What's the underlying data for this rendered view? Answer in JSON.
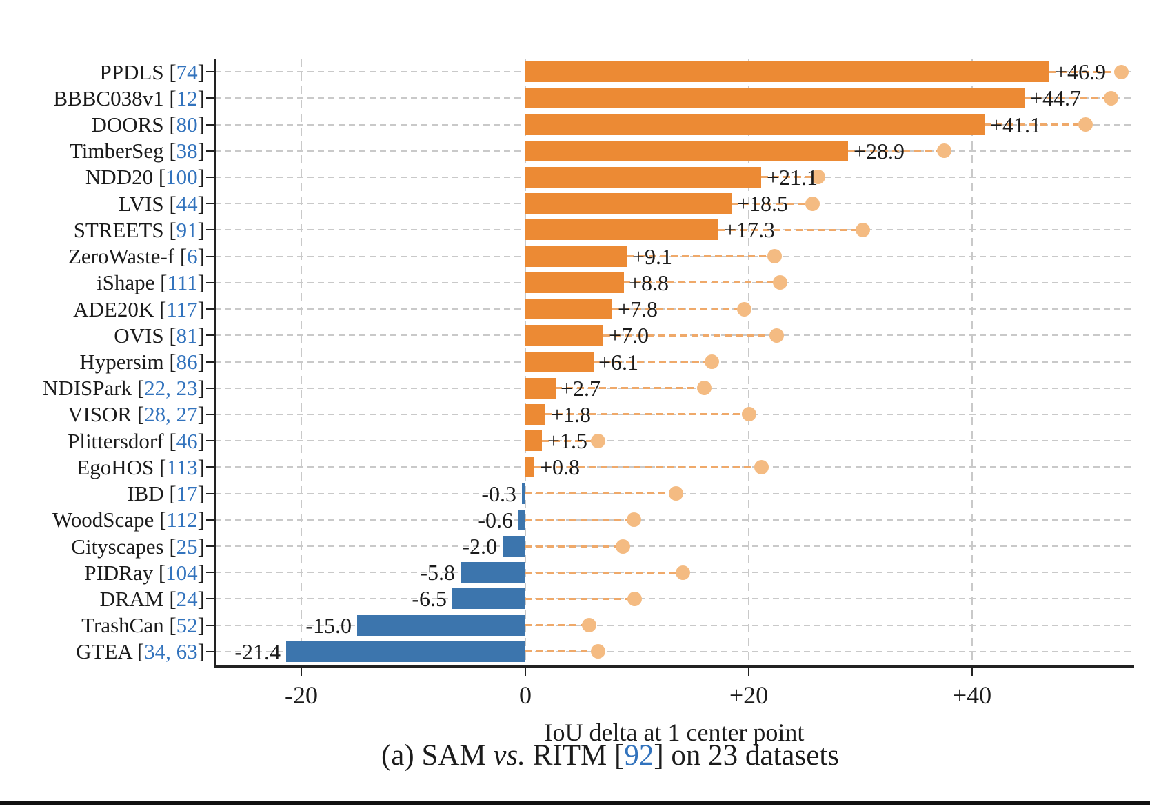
{
  "chart_data": {
    "type": "bar",
    "orientation": "horizontal",
    "xlabel": "IoU delta at 1 center point",
    "xlim": [
      -27.8,
      54.5
    ],
    "grid": true,
    "bar_color_positive": "#ec8a34",
    "bar_color_negative": "#3c75ad",
    "dot_color": "#f4bb82",
    "connector_color": "#efa96a",
    "axis_color": "#222222",
    "citation_color": "#3273bd",
    "xticks": [
      {
        "value": -20,
        "label": "-20"
      },
      {
        "value": 0,
        "label": "0"
      },
      {
        "value": 20,
        "label": "+20"
      },
      {
        "value": 40,
        "label": "+40"
      }
    ],
    "label_open": " [",
    "label_close": "]",
    "rows": [
      {
        "dataset": "PPDLS",
        "citation": "74",
        "delta": 46.9,
        "delta_label": "+46.9",
        "oracle_dot": 53.3
      },
      {
        "dataset": "BBBC038v1",
        "citation": "12",
        "delta": 44.7,
        "delta_label": "+44.7",
        "oracle_dot": 52.4
      },
      {
        "dataset": "DOORS",
        "citation": "80",
        "delta": 41.1,
        "delta_label": "+41.1",
        "oracle_dot": 50.1
      },
      {
        "dataset": "TimberSeg",
        "citation": "38",
        "delta": 28.9,
        "delta_label": "+28.9",
        "oracle_dot": 37.5
      },
      {
        "dataset": "NDD20",
        "citation": "100",
        "delta": 21.1,
        "delta_label": "+21.1",
        "oracle_dot": 26.2
      },
      {
        "dataset": "LVIS",
        "citation": "44",
        "delta": 18.5,
        "delta_label": "+18.5",
        "oracle_dot": 25.7
      },
      {
        "dataset": "STREETS",
        "citation": "91",
        "delta": 17.3,
        "delta_label": "+17.3",
        "oracle_dot": 30.2
      },
      {
        "dataset": "ZeroWaste-f",
        "citation": "6",
        "delta": 9.1,
        "delta_label": "+9.1",
        "oracle_dot": 22.3
      },
      {
        "dataset": "iShape",
        "citation": "111",
        "delta": 8.8,
        "delta_label": "+8.8",
        "oracle_dot": 22.8
      },
      {
        "dataset": "ADE20K",
        "citation": "117",
        "delta": 7.8,
        "delta_label": "+7.8",
        "oracle_dot": 19.6
      },
      {
        "dataset": "OVIS",
        "citation": "81",
        "delta": 7.0,
        "delta_label": "+7.0",
        "oracle_dot": 22.5
      },
      {
        "dataset": "Hypersim",
        "citation": "86",
        "delta": 6.1,
        "delta_label": "+6.1",
        "oracle_dot": 16.7
      },
      {
        "dataset": "NDISPark",
        "citation": "22, 23",
        "delta": 2.7,
        "delta_label": "+2.7",
        "oracle_dot": 16.0
      },
      {
        "dataset": "VISOR",
        "citation": "28, 27",
        "delta": 1.8,
        "delta_label": "+1.8",
        "oracle_dot": 20.0
      },
      {
        "dataset": "Plittersdorf",
        "citation": "46",
        "delta": 1.5,
        "delta_label": "+1.5",
        "oracle_dot": 6.5
      },
      {
        "dataset": "EgoHOS",
        "citation": "113",
        "delta": 0.8,
        "delta_label": "+0.8",
        "oracle_dot": 21.1
      },
      {
        "dataset": "IBD",
        "citation": "17",
        "delta": -0.3,
        "delta_label": "-0.3",
        "oracle_dot": 13.5
      },
      {
        "dataset": "WoodScape",
        "citation": "112",
        "delta": -0.6,
        "delta_label": "-0.6",
        "oracle_dot": 9.7
      },
      {
        "dataset": "Cityscapes",
        "citation": "25",
        "delta": -2.0,
        "delta_label": "-2.0",
        "oracle_dot": 8.7
      },
      {
        "dataset": "PIDRay",
        "citation": "104",
        "delta": -5.8,
        "delta_label": "-5.8",
        "oracle_dot": 14.1
      },
      {
        "dataset": "DRAM",
        "citation": "24",
        "delta": -6.5,
        "delta_label": "-6.5",
        "oracle_dot": 9.8
      },
      {
        "dataset": "TrashCan",
        "citation": "52",
        "delta": -15.0,
        "delta_label": "-15.0",
        "oracle_dot": 5.7
      },
      {
        "dataset": "GTEA",
        "citation": "34, 63",
        "delta": -21.4,
        "delta_label": "-21.4",
        "oracle_dot": 6.5
      }
    ]
  },
  "caption": {
    "part1": "(a) SAM ",
    "vs": "vs.",
    "part2": " RITM ",
    "bracket_open": "[",
    "cite": "92",
    "bracket_close": "]",
    "part3": " on 23 datasets"
  }
}
